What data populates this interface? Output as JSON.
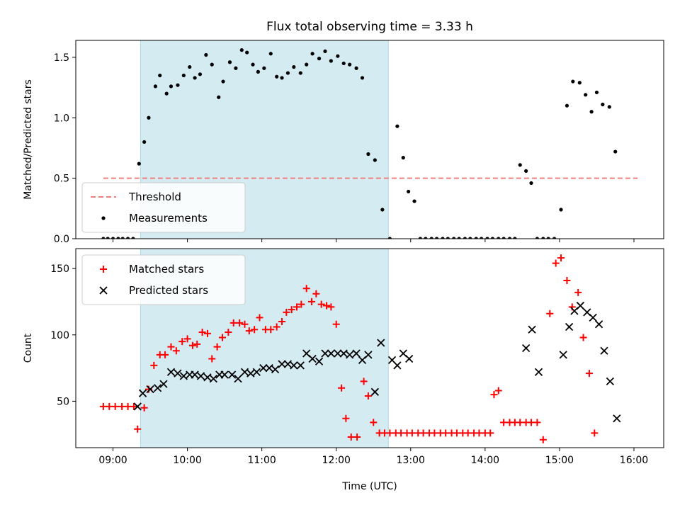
{
  "chart_data": {
    "type": "scatter",
    "title": "Flux total observing time = 3.33 h",
    "xlabel": "Time (UTC)",
    "xlim": [
      8.5,
      16.4
    ],
    "x_ticks": [
      9,
      10,
      11,
      12,
      13,
      14,
      15,
      16
    ],
    "x_tick_labels": [
      "09:00",
      "10:00",
      "11:00",
      "12:00",
      "13:00",
      "14:00",
      "15:00",
      "16:00"
    ],
    "highlight_span": [
      9.37,
      12.7
    ],
    "highlight_color": "#d4ebf2",
    "panels": [
      {
        "ylabel": "Matched/Predicted stars",
        "ylim": [
          0,
          1.64
        ],
        "y_ticks": [
          0,
          0.5,
          1,
          1.5
        ],
        "y_tick_labels": [
          "0.0",
          "0.5",
          "1.0",
          "1.5"
        ],
        "legend_position": "lower-left",
        "threshold": {
          "name": "Threshold",
          "value": 0.5,
          "x_range": [
            8.87,
            16.05
          ],
          "color": "#f08080"
        },
        "series": [
          {
            "name": "Measurements",
            "color": "#000000",
            "marker": "dot",
            "points": [
              [
                8.87,
                0
              ],
              [
                8.93,
                0
              ],
              [
                9.0,
                0
              ],
              [
                9.07,
                0
              ],
              [
                9.13,
                0
              ],
              [
                9.2,
                0
              ],
              [
                9.27,
                0
              ],
              [
                9.35,
                0.62
              ],
              [
                9.42,
                0.8
              ],
              [
                9.48,
                1.0
              ],
              [
                9.57,
                1.26
              ],
              [
                9.63,
                1.35
              ],
              [
                9.72,
                1.2
              ],
              [
                9.78,
                1.26
              ],
              [
                9.87,
                1.27
              ],
              [
                9.95,
                1.35
              ],
              [
                10.03,
                1.42
              ],
              [
                10.1,
                1.33
              ],
              [
                10.17,
                1.36
              ],
              [
                10.25,
                1.52
              ],
              [
                10.33,
                1.44
              ],
              [
                10.42,
                1.17
              ],
              [
                10.48,
                1.3
              ],
              [
                10.57,
                1.46
              ],
              [
                10.65,
                1.41
              ],
              [
                10.73,
                1.56
              ],
              [
                10.8,
                1.54
              ],
              [
                10.88,
                1.44
              ],
              [
                10.95,
                1.38
              ],
              [
                11.03,
                1.41
              ],
              [
                11.12,
                1.53
              ],
              [
                11.2,
                1.34
              ],
              [
                11.27,
                1.33
              ],
              [
                11.35,
                1.37
              ],
              [
                11.43,
                1.42
              ],
              [
                11.52,
                1.37
              ],
              [
                11.6,
                1.44
              ],
              [
                11.68,
                1.53
              ],
              [
                11.77,
                1.49
              ],
              [
                11.85,
                1.55
              ],
              [
                11.93,
                1.47
              ],
              [
                12.02,
                1.51
              ],
              [
                12.1,
                1.45
              ],
              [
                12.18,
                1.44
              ],
              [
                12.27,
                1.41
              ],
              [
                12.35,
                1.33
              ],
              [
                12.43,
                0.7
              ],
              [
                12.52,
                0.65
              ],
              [
                12.62,
                0.24
              ],
              [
                12.72,
                0
              ],
              [
                12.82,
                0.93
              ],
              [
                12.9,
                0.67
              ],
              [
                12.97,
                0.39
              ],
              [
                13.05,
                0.31
              ],
              [
                13.13,
                0
              ],
              [
                13.2,
                0
              ],
              [
                13.28,
                0
              ],
              [
                13.35,
                0
              ],
              [
                13.43,
                0
              ],
              [
                13.5,
                0
              ],
              [
                13.58,
                0
              ],
              [
                13.65,
                0
              ],
              [
                13.73,
                0
              ],
              [
                13.8,
                0
              ],
              [
                13.88,
                0
              ],
              [
                13.95,
                0
              ],
              [
                14.03,
                0
              ],
              [
                14.1,
                0
              ],
              [
                14.18,
                0
              ],
              [
                14.25,
                0
              ],
              [
                14.33,
                0
              ],
              [
                14.4,
                0
              ],
              [
                14.47,
                0.61
              ],
              [
                14.55,
                0.56
              ],
              [
                14.62,
                0.46
              ],
              [
                14.7,
                0
              ],
              [
                14.78,
                0
              ],
              [
                14.85,
                0
              ],
              [
                14.93,
                0
              ],
              [
                15.02,
                0.24
              ],
              [
                15.1,
                1.1
              ],
              [
                15.18,
                1.3
              ],
              [
                15.27,
                1.29
              ],
              [
                15.35,
                1.19
              ],
              [
                15.43,
                1.05
              ],
              [
                15.5,
                1.21
              ],
              [
                15.58,
                1.11
              ],
              [
                15.67,
                1.09
              ],
              [
                15.75,
                0.72
              ]
            ]
          }
        ]
      },
      {
        "ylabel": "Count",
        "ylim": [
          15,
          165
        ],
        "y_ticks": [
          50,
          100,
          150
        ],
        "y_tick_labels": [
          "50",
          "100",
          "150"
        ],
        "legend_position": "upper-left",
        "series": [
          {
            "name": "Matched stars",
            "color": "#ff0000",
            "marker": "plus",
            "points": [
              [
                8.87,
                46
              ],
              [
                8.95,
                46
              ],
              [
                9.03,
                46
              ],
              [
                9.12,
                46
              ],
              [
                9.2,
                46
              ],
              [
                9.28,
                46
              ],
              [
                9.33,
                29
              ],
              [
                9.42,
                45
              ],
              [
                9.48,
                59
              ],
              [
                9.55,
                77
              ],
              [
                9.63,
                85
              ],
              [
                9.7,
                85
              ],
              [
                9.78,
                91
              ],
              [
                9.85,
                88
              ],
              [
                9.93,
                95
              ],
              [
                10.0,
                97
              ],
              [
                10.07,
                92
              ],
              [
                10.13,
                93
              ],
              [
                10.2,
                102
              ],
              [
                10.27,
                101
              ],
              [
                10.33,
                82
              ],
              [
                10.4,
                91
              ],
              [
                10.47,
                98
              ],
              [
                10.55,
                102
              ],
              [
                10.62,
                109
              ],
              [
                10.7,
                109
              ],
              [
                10.77,
                108
              ],
              [
                10.83,
                103
              ],
              [
                10.9,
                104
              ],
              [
                10.97,
                113
              ],
              [
                11.05,
                104
              ],
              [
                11.12,
                104
              ],
              [
                11.2,
                106
              ],
              [
                11.27,
                110
              ],
              [
                11.33,
                117
              ],
              [
                11.4,
                119
              ],
              [
                11.47,
                121
              ],
              [
                11.53,
                123
              ],
              [
                11.6,
                135
              ],
              [
                11.67,
                125
              ],
              [
                11.73,
                131
              ],
              [
                11.8,
                123
              ],
              [
                11.87,
                122
              ],
              [
                11.93,
                121
              ],
              [
                12.0,
                108
              ],
              [
                12.07,
                60
              ],
              [
                12.13,
                37
              ],
              [
                12.2,
                23
              ],
              [
                12.28,
                23
              ],
              [
                12.37,
                65
              ],
              [
                12.43,
                54
              ],
              [
                12.5,
                34
              ],
              [
                12.58,
                26
              ],
              [
                12.65,
                26
              ],
              [
                12.72,
                26
              ],
              [
                12.8,
                26
              ],
              [
                12.87,
                26
              ],
              [
                12.95,
                26
              ],
              [
                13.02,
                26
              ],
              [
                13.1,
                26
              ],
              [
                13.17,
                26
              ],
              [
                13.25,
                26
              ],
              [
                13.32,
                26
              ],
              [
                13.4,
                26
              ],
              [
                13.47,
                26
              ],
              [
                13.55,
                26
              ],
              [
                13.62,
                26
              ],
              [
                13.7,
                26
              ],
              [
                13.77,
                26
              ],
              [
                13.85,
                26
              ],
              [
                13.92,
                26
              ],
              [
                14.0,
                26
              ],
              [
                14.07,
                26
              ],
              [
                14.12,
                55
              ],
              [
                14.18,
                58
              ],
              [
                14.25,
                34
              ],
              [
                14.33,
                34
              ],
              [
                14.4,
                34
              ],
              [
                14.47,
                34
              ],
              [
                14.55,
                34
              ],
              [
                14.62,
                34
              ],
              [
                14.7,
                34
              ],
              [
                14.78,
                21
              ],
              [
                14.87,
                116
              ],
              [
                14.95,
                154
              ],
              [
                15.02,
                158
              ],
              [
                15.1,
                141
              ],
              [
                15.17,
                121
              ],
              [
                15.25,
                132
              ],
              [
                15.32,
                98
              ],
              [
                15.4,
                71
              ],
              [
                15.47,
                26
              ]
            ]
          },
          {
            "name": "Predicted stars",
            "color": "#000000",
            "marker": "x",
            "points": [
              [
                9.33,
                46
              ],
              [
                9.4,
                56
              ],
              [
                9.5,
                59
              ],
              [
                9.6,
                60
              ],
              [
                9.68,
                63
              ],
              [
                9.78,
                72
              ],
              [
                9.87,
                71
              ],
              [
                9.95,
                69
              ],
              [
                10.03,
                70
              ],
              [
                10.1,
                70
              ],
              [
                10.18,
                69
              ],
              [
                10.27,
                68
              ],
              [
                10.35,
                67
              ],
              [
                10.43,
                70
              ],
              [
                10.5,
                70
              ],
              [
                10.6,
                70
              ],
              [
                10.68,
                67
              ],
              [
                10.77,
                72
              ],
              [
                10.85,
                71
              ],
              [
                10.93,
                72
              ],
              [
                11.02,
                75
              ],
              [
                11.1,
                75
              ],
              [
                11.18,
                74
              ],
              [
                11.27,
                78
              ],
              [
                11.35,
                78
              ],
              [
                11.43,
                77
              ],
              [
                11.52,
                77
              ],
              [
                11.6,
                86
              ],
              [
                11.68,
                82
              ],
              [
                11.77,
                80
              ],
              [
                11.85,
                86
              ],
              [
                11.93,
                86
              ],
              [
                12.02,
                86
              ],
              [
                12.1,
                86
              ],
              [
                12.18,
                85
              ],
              [
                12.27,
                86
              ],
              [
                12.35,
                81
              ],
              [
                12.43,
                85
              ],
              [
                12.52,
                57
              ],
              [
                12.6,
                94
              ],
              [
                12.75,
                81
              ],
              [
                12.82,
                77
              ],
              [
                12.9,
                86
              ],
              [
                12.98,
                82
              ],
              [
                14.55,
                90
              ],
              [
                14.63,
                104
              ],
              [
                14.72,
                72
              ],
              [
                15.05,
                85
              ],
              [
                15.13,
                106
              ],
              [
                15.2,
                118
              ],
              [
                15.28,
                122
              ],
              [
                15.37,
                117
              ],
              [
                15.45,
                113
              ],
              [
                15.53,
                108
              ],
              [
                15.6,
                88
              ],
              [
                15.68,
                65
              ],
              [
                15.77,
                37
              ]
            ]
          }
        ]
      }
    ]
  }
}
